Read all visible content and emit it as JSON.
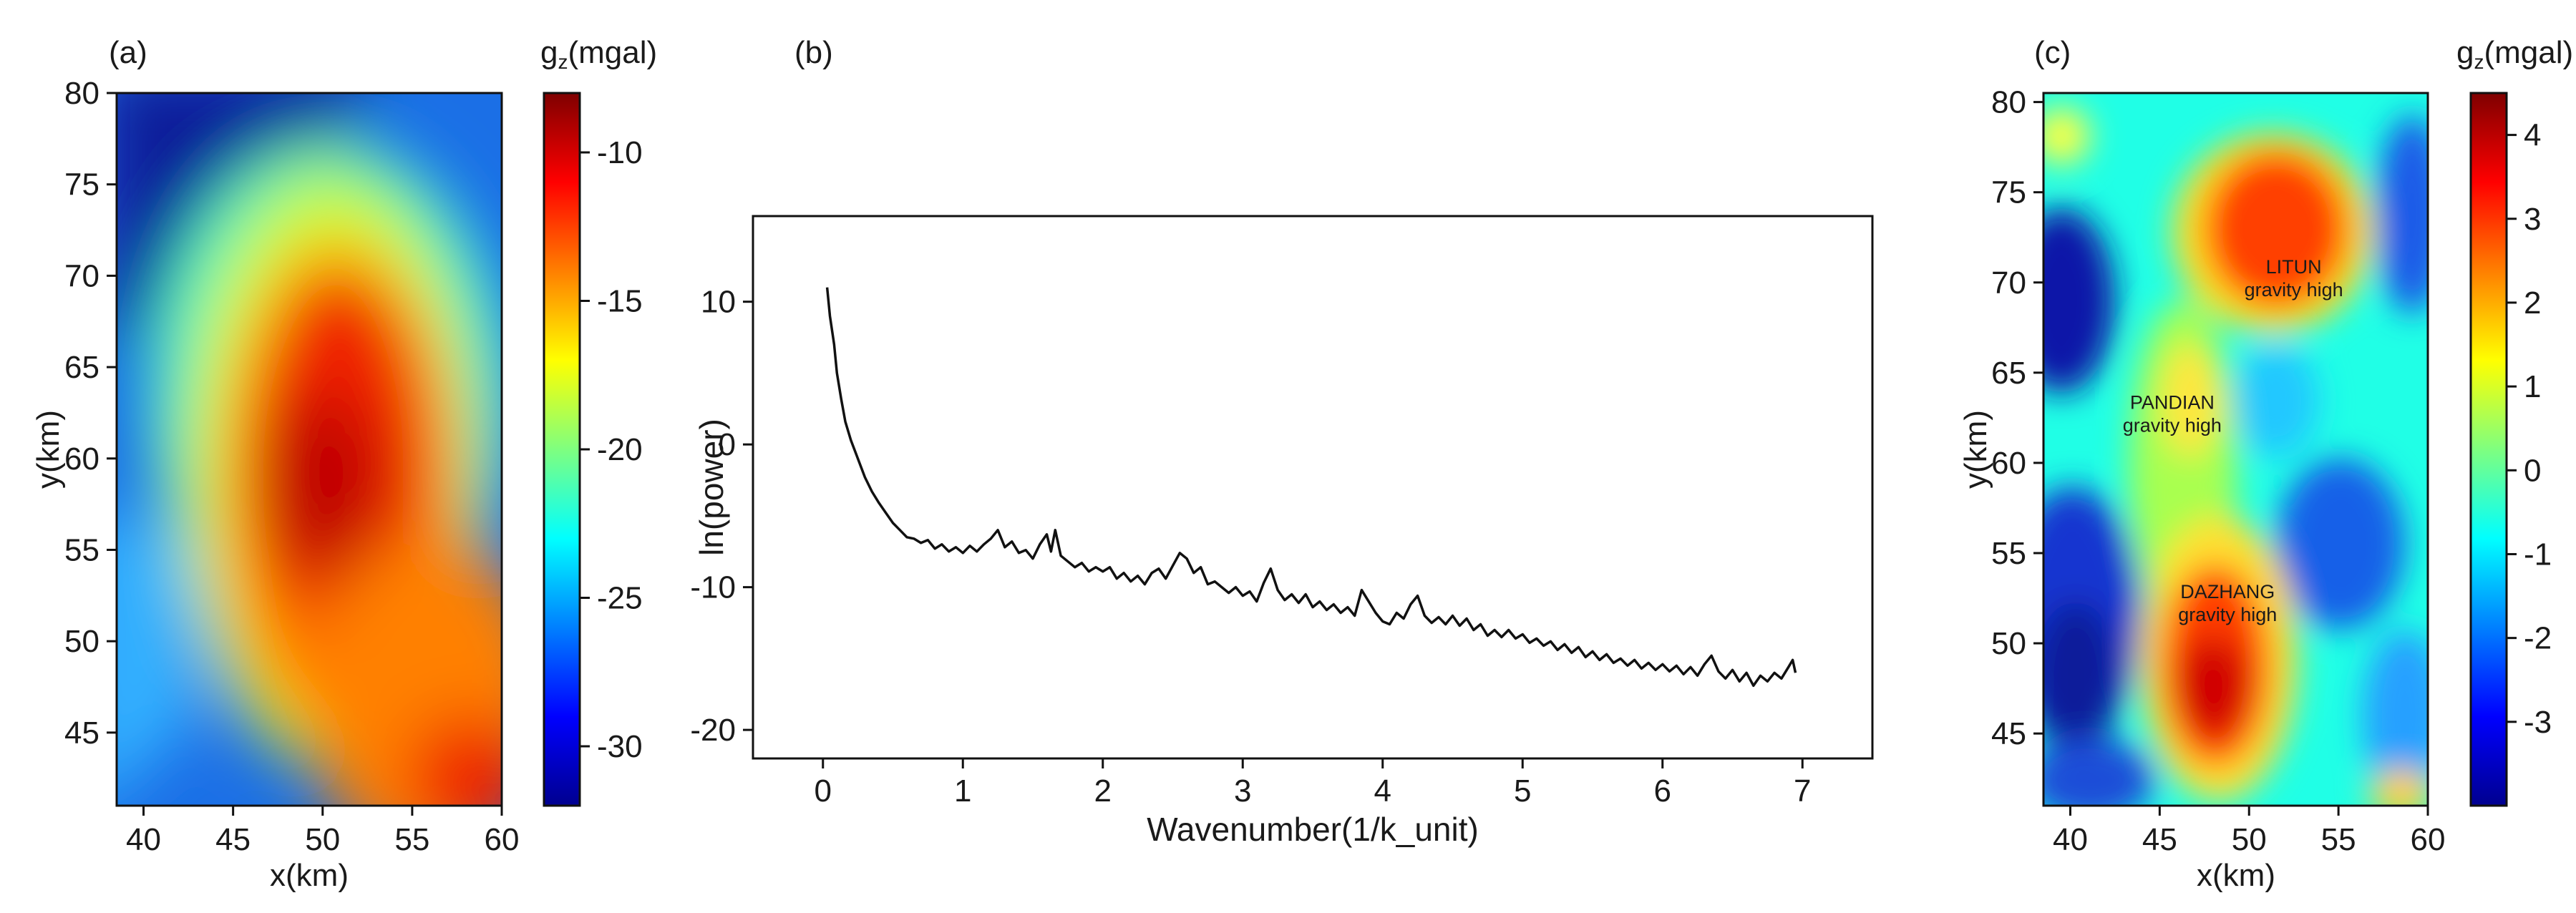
{
  "chart_data": [
    {
      "panel": "(a)",
      "type": "heatmap",
      "xlabel": "x(km)",
      "ylabel": "y(km)",
      "xlim": [
        38.5,
        60
      ],
      "ylim": [
        41,
        80
      ],
      "xticks": [
        "40",
        "45",
        "50",
        "55",
        "60"
      ],
      "yticks": [
        "45",
        "50",
        "55",
        "60",
        "65",
        "70",
        "75",
        "80"
      ],
      "colorbar": {
        "label_main": "g",
        "label_sub": "z",
        "label_unit": "(mgal)",
        "range": [
          -32,
          -8
        ],
        "ticks": [
          "-10",
          "-15",
          "-20",
          "-25",
          "-30"
        ]
      },
      "features": [
        {
          "shape": "broad regional gravity high",
          "x": 48,
          "y": 60,
          "level": -8.5
        },
        {
          "shape": "lobe",
          "x": 49,
          "y": 51,
          "level": -10
        },
        {
          "shape": "lobe",
          "x": 59,
          "y": 42,
          "level": -11.5
        },
        {
          "shape": "regional low",
          "x": 40,
          "y": 78,
          "level": -31
        }
      ]
    },
    {
      "panel": "(b)",
      "type": "line",
      "xlabel": "Wavenumber(1/k_unit)",
      "ylabel": "ln(power)",
      "xlim": [
        -0.5,
        7.5
      ],
      "ylim": [
        -22,
        16
      ],
      "xticks": [
        "0",
        "1",
        "2",
        "3",
        "4",
        "5",
        "6",
        "7"
      ],
      "yticks": [
        "10",
        "0",
        "-10",
        "-20"
      ],
      "series": [
        {
          "values_xy": [
            [
              0.03,
              11.0
            ],
            [
              0.05,
              9.0
            ],
            [
              0.08,
              7.0
            ],
            [
              0.1,
              5.0
            ],
            [
              0.13,
              3.2
            ],
            [
              0.16,
              1.6
            ],
            [
              0.2,
              0.3
            ],
            [
              0.25,
              -1.0
            ],
            [
              0.3,
              -2.3
            ],
            [
              0.35,
              -3.3
            ],
            [
              0.4,
              -4.1
            ],
            [
              0.45,
              -4.8
            ],
            [
              0.5,
              -5.5
            ],
            [
              0.55,
              -6.0
            ],
            [
              0.6,
              -6.5
            ],
            [
              0.65,
              -6.6
            ],
            [
              0.7,
              -6.9
            ],
            [
              0.75,
              -6.7
            ],
            [
              0.8,
              -7.3
            ],
            [
              0.85,
              -7.0
            ],
            [
              0.9,
              -7.5
            ],
            [
              0.95,
              -7.2
            ],
            [
              1.0,
              -7.6
            ],
            [
              1.05,
              -7.1
            ],
            [
              1.1,
              -7.5
            ],
            [
              1.15,
              -7.0
            ],
            [
              1.2,
              -6.6
            ],
            [
              1.25,
              -6.0
            ],
            [
              1.3,
              -7.2
            ],
            [
              1.35,
              -6.8
            ],
            [
              1.4,
              -7.6
            ],
            [
              1.45,
              -7.4
            ],
            [
              1.5,
              -8.0
            ],
            [
              1.55,
              -7.0
            ],
            [
              1.6,
              -6.3
            ],
            [
              1.63,
              -7.5
            ],
            [
              1.66,
              -6.0
            ],
            [
              1.7,
              -7.8
            ],
            [
              1.75,
              -8.2
            ],
            [
              1.8,
              -8.6
            ],
            [
              1.85,
              -8.3
            ],
            [
              1.9,
              -8.9
            ],
            [
              1.95,
              -8.6
            ],
            [
              2.0,
              -8.9
            ],
            [
              2.05,
              -8.6
            ],
            [
              2.1,
              -9.4
            ],
            [
              2.15,
              -9.0
            ],
            [
              2.2,
              -9.6
            ],
            [
              2.25,
              -9.2
            ],
            [
              2.3,
              -9.8
            ],
            [
              2.35,
              -9.0
            ],
            [
              2.4,
              -8.7
            ],
            [
              2.45,
              -9.4
            ],
            [
              2.5,
              -8.5
            ],
            [
              2.55,
              -7.6
            ],
            [
              2.6,
              -8.0
            ],
            [
              2.65,
              -9.0
            ],
            [
              2.7,
              -8.6
            ],
            [
              2.75,
              -9.8
            ],
            [
              2.8,
              -9.6
            ],
            [
              2.85,
              -10.0
            ],
            [
              2.9,
              -10.4
            ],
            [
              2.95,
              -10.0
            ],
            [
              3.0,
              -10.6
            ],
            [
              3.05,
              -10.3
            ],
            [
              3.1,
              -11.0
            ],
            [
              3.15,
              -9.7
            ],
            [
              3.2,
              -8.7
            ],
            [
              3.25,
              -10.2
            ],
            [
              3.3,
              -10.9
            ],
            [
              3.35,
              -10.5
            ],
            [
              3.4,
              -11.1
            ],
            [
              3.45,
              -10.5
            ],
            [
              3.5,
              -11.4
            ],
            [
              3.55,
              -11.0
            ],
            [
              3.6,
              -11.6
            ],
            [
              3.65,
              -11.2
            ],
            [
              3.7,
              -11.8
            ],
            [
              3.75,
              -11.4
            ],
            [
              3.8,
              -12.0
            ],
            [
              3.85,
              -10.2
            ],
            [
              3.9,
              -11.0
            ],
            [
              3.95,
              -11.8
            ],
            [
              4.0,
              -12.4
            ],
            [
              4.05,
              -12.6
            ],
            [
              4.1,
              -11.8
            ],
            [
              4.15,
              -12.2
            ],
            [
              4.2,
              -11.2
            ],
            [
              4.25,
              -10.6
            ],
            [
              4.3,
              -12.0
            ],
            [
              4.35,
              -12.5
            ],
            [
              4.4,
              -12.1
            ],
            [
              4.45,
              -12.6
            ],
            [
              4.5,
              -12.0
            ],
            [
              4.55,
              -12.7
            ],
            [
              4.6,
              -12.2
            ],
            [
              4.65,
              -13.0
            ],
            [
              4.7,
              -12.6
            ],
            [
              4.75,
              -13.4
            ],
            [
              4.8,
              -13.0
            ],
            [
              4.85,
              -13.5
            ],
            [
              4.9,
              -13.0
            ],
            [
              4.95,
              -13.6
            ],
            [
              5.0,
              -13.3
            ],
            [
              5.05,
              -13.9
            ],
            [
              5.1,
              -13.6
            ],
            [
              5.15,
              -14.1
            ],
            [
              5.2,
              -13.8
            ],
            [
              5.25,
              -14.4
            ],
            [
              5.3,
              -14.0
            ],
            [
              5.35,
              -14.6
            ],
            [
              5.4,
              -14.2
            ],
            [
              5.45,
              -14.9
            ],
            [
              5.5,
              -14.5
            ],
            [
              5.55,
              -15.1
            ],
            [
              5.6,
              -14.7
            ],
            [
              5.65,
              -15.3
            ],
            [
              5.7,
              -15.0
            ],
            [
              5.75,
              -15.5
            ],
            [
              5.8,
              -15.1
            ],
            [
              5.85,
              -15.7
            ],
            [
              5.9,
              -15.3
            ],
            [
              5.95,
              -15.8
            ],
            [
              6.0,
              -15.4
            ],
            [
              6.05,
              -15.9
            ],
            [
              6.1,
              -15.5
            ],
            [
              6.15,
              -16.1
            ],
            [
              6.2,
              -15.6
            ],
            [
              6.25,
              -16.2
            ],
            [
              6.3,
              -15.4
            ],
            [
              6.35,
              -14.8
            ],
            [
              6.4,
              -15.9
            ],
            [
              6.45,
              -16.4
            ],
            [
              6.5,
              -15.8
            ],
            [
              6.55,
              -16.6
            ],
            [
              6.6,
              -16.0
            ],
            [
              6.65,
              -16.9
            ],
            [
              6.7,
              -16.2
            ],
            [
              6.75,
              -16.6
            ],
            [
              6.8,
              -16.0
            ],
            [
              6.85,
              -16.4
            ],
            [
              6.9,
              -15.6
            ],
            [
              6.93,
              -15.1
            ],
            [
              6.95,
              -16.0
            ]
          ]
        }
      ]
    },
    {
      "panel": "(c)",
      "type": "heatmap",
      "xlabel": "x(km)",
      "ylabel": "y(km)",
      "xlim": [
        38.5,
        60
      ],
      "ylim": [
        41,
        80.5
      ],
      "xticks": [
        "40",
        "45",
        "50",
        "55",
        "60"
      ],
      "yticks": [
        "45",
        "50",
        "55",
        "60",
        "65",
        "70",
        "75",
        "80"
      ],
      "colorbar": {
        "label_main": "g",
        "label_sub": "z",
        "label_unit": "(mgal)",
        "range": [
          -4,
          4.5
        ],
        "ticks": [
          "4",
          "3",
          "2",
          "1",
          "0",
          "-1",
          "-2",
          "-3"
        ]
      },
      "features": [
        {
          "shape": "high",
          "x": 52,
          "y": 72.5,
          "level": 3.6
        },
        {
          "shape": "high",
          "x": 48,
          "y": 49.5,
          "level": 4.1
        },
        {
          "shape": "high",
          "x": 46,
          "y": 62,
          "level": 1.5
        },
        {
          "shape": "low",
          "x": 40.5,
          "y": 69,
          "level": -3.5
        },
        {
          "shape": "low",
          "x": 40.5,
          "y": 50,
          "level": -3.2
        },
        {
          "shape": "low",
          "x": 56,
          "y": 55,
          "level": -2.8
        },
        {
          "shape": "low",
          "x": 58,
          "y": 75,
          "level": -2.5
        }
      ],
      "annotations": [
        {
          "line1": "LITUN",
          "line2": "gravity high",
          "x": 52.5,
          "y": 70.5
        },
        {
          "line1": "PANDIAN",
          "line2": "gravity high",
          "x": 45.7,
          "y": 63
        },
        {
          "line1": "DAZHANG",
          "line2": "gravity high",
          "x": 48.8,
          "y": 52.5
        }
      ]
    }
  ]
}
